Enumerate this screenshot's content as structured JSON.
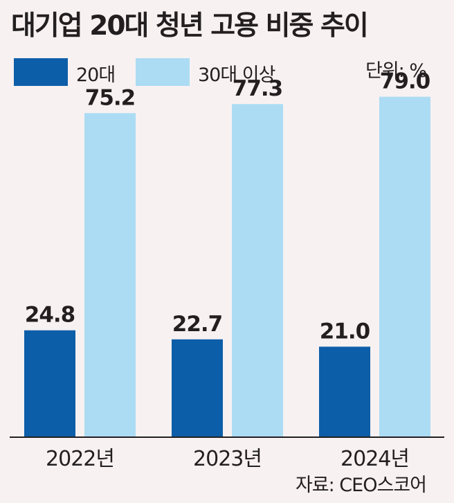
{
  "title": "대기업 20대 청년 고용 비중 추이",
  "unit": "단위: %",
  "source": "자료: CEO스코어",
  "chart_data": {
    "type": "bar",
    "categories": [
      "2022년",
      "2023년",
      "2024년"
    ],
    "series": [
      {
        "name": "20대",
        "values": [
          24.8,
          22.7,
          21.0
        ],
        "color": "#0d5ea8"
      },
      {
        "name": "30대 이상",
        "values": [
          75.2,
          77.3,
          79.0
        ],
        "color": "#acdcf3"
      }
    ],
    "value_labels": [
      [
        "24.8",
        "22.7",
        "21.0"
      ],
      [
        "75.2",
        "77.3",
        "79.0"
      ]
    ],
    "ylim": [
      0,
      100
    ],
    "legend": "top-left",
    "grid": false
  }
}
